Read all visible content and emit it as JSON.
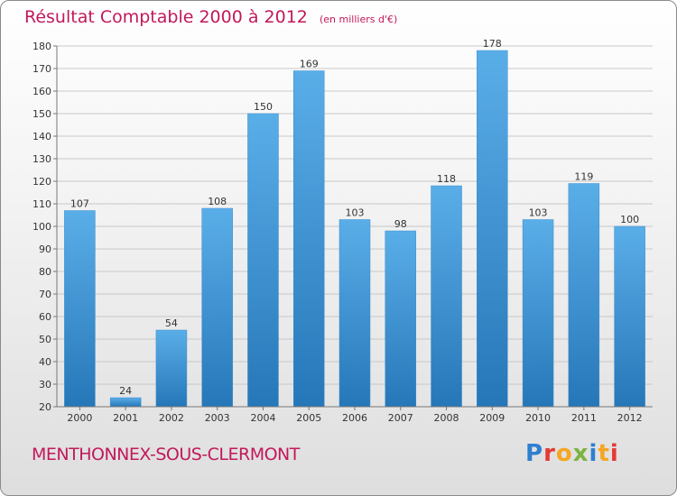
{
  "title": "Résultat Comptable 2000 à 2012",
  "subtitle": "(en milliers d'€)",
  "commune": "MENTHONNEX-SOUS-CLERMONT",
  "logo": {
    "letters": [
      "P",
      "r",
      "o",
      "x",
      "i",
      "t",
      "i"
    ],
    "colors": [
      "#2e7fd0",
      "#e53935",
      "#f5a623",
      "#7cb342",
      "#2e7fd0",
      "#f5a623",
      "#e53935"
    ]
  },
  "colors": {
    "bar_light": "#5aaee8",
    "bar_dark": "#2677b8",
    "accent": "#c2185b"
  },
  "chart_data": {
    "type": "bar",
    "title": "Résultat Comptable 2000 à 2012",
    "xlabel": "",
    "ylabel": "",
    "categories": [
      "2000",
      "2001",
      "2002",
      "2003",
      "2004",
      "2005",
      "2006",
      "2007",
      "2008",
      "2009",
      "2010",
      "2011",
      "2012"
    ],
    "values": [
      107,
      24,
      54,
      108,
      150,
      169,
      103,
      98,
      118,
      178,
      103,
      119,
      100
    ],
    "ylim": [
      20,
      180
    ],
    "yticks": [
      20,
      30,
      40,
      50,
      60,
      70,
      80,
      90,
      100,
      110,
      120,
      130,
      140,
      150,
      160,
      170,
      180
    ],
    "grid": true
  }
}
